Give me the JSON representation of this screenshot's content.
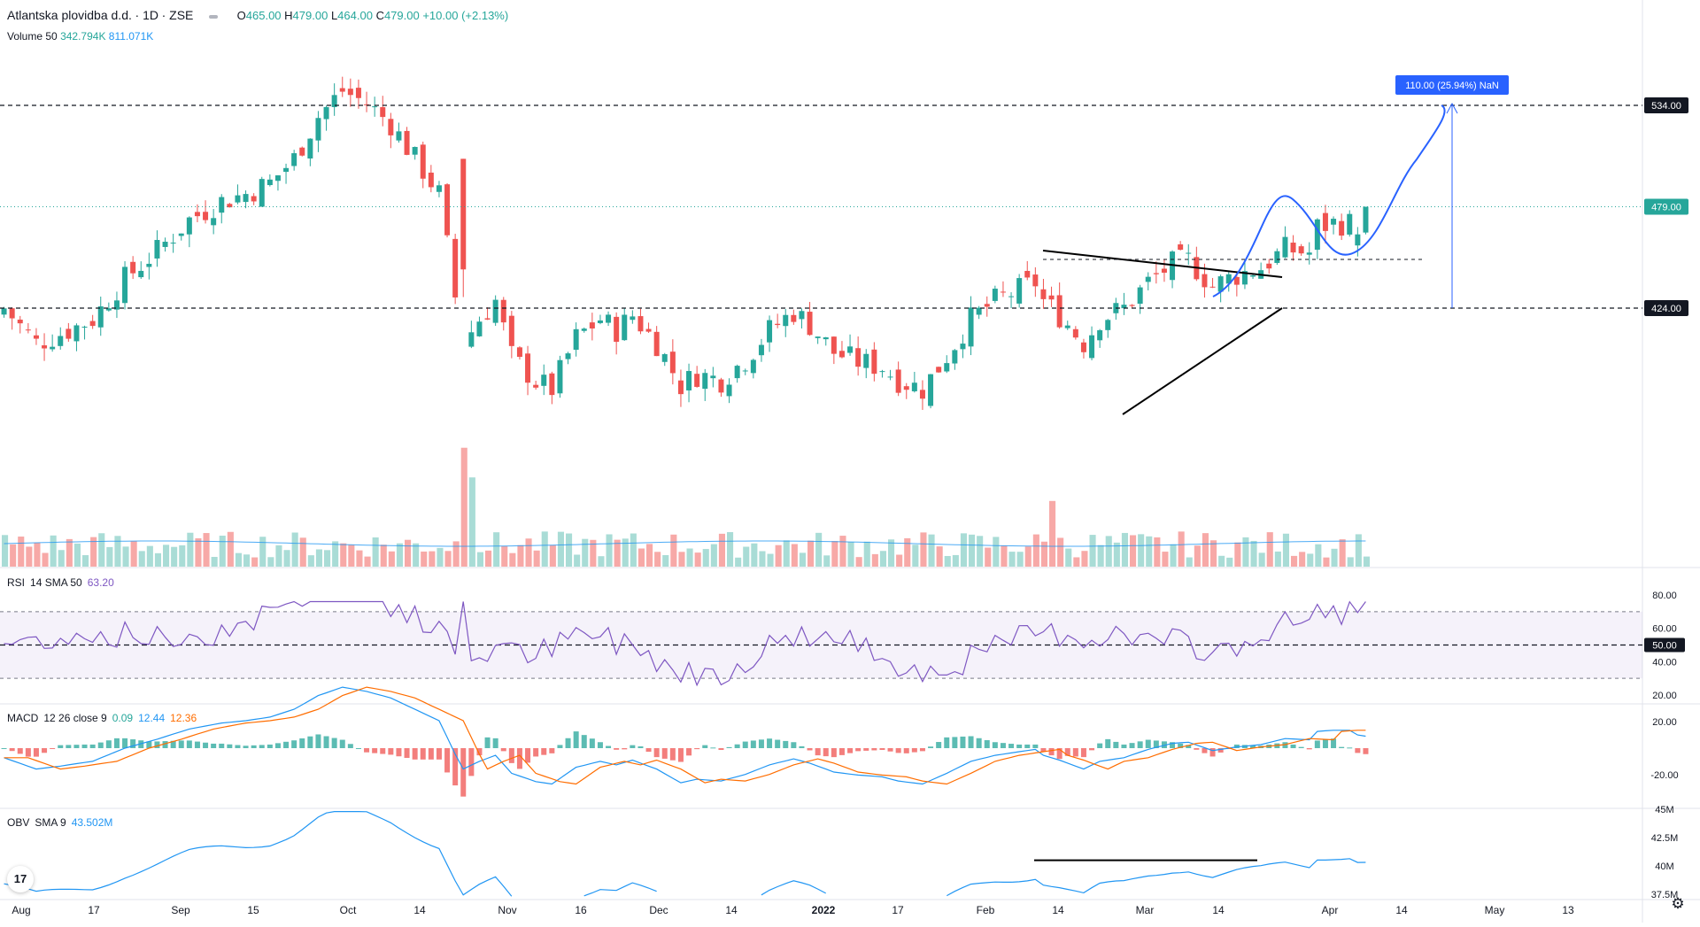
{
  "header": {
    "symbol": "Atlantska plovidba d.d.",
    "interval": "1D",
    "exchange": "ZSE",
    "ohlc": {
      "open_label": "O",
      "open": "465.00",
      "high_label": "H",
      "high": "479.00",
      "low_label": "L",
      "low": "464.00",
      "close_label": "C",
      "close": "479.00",
      "change": "+10.00 (+2.13%)"
    },
    "volume_label": "Volume 50",
    "volume_value": "342.794K",
    "volume_ma_value": "811.071K"
  },
  "indicators": {
    "rsi": {
      "label": "RSI",
      "params": "14 SMA 50",
      "value": "63.20"
    },
    "macd": {
      "label": "MACD",
      "params": "12 26 close 9",
      "hist": "0.09",
      "macd": "12.44",
      "signal": "12.36"
    },
    "obv": {
      "label": "OBV",
      "params": "SMA 9",
      "value": "43.502M"
    }
  },
  "price_axis": {
    "labels": [
      {
        "text": "534.00",
        "value": 534,
        "highlight": "dark"
      },
      {
        "text": "479.00",
        "value": 479,
        "highlight": "green"
      },
      {
        "text": "424.00",
        "value": 424,
        "highlight": "dark"
      }
    ]
  },
  "rsi_axis": [
    "80.00",
    "60.00",
    "50.00",
    "40.00",
    "20.00"
  ],
  "macd_axis": [
    "20.00",
    "-20.00"
  ],
  "obv_axis": [
    "45M",
    "42.5M",
    "40M",
    "37.5M"
  ],
  "time_axis": [
    "Aug",
    "17",
    "Sep",
    "15",
    "Oct",
    "14",
    "Nov",
    "16",
    "Dec",
    "14",
    "2022",
    "17",
    "Feb",
    "14",
    "Mar",
    "14",
    "Apr",
    "14",
    "May",
    "13"
  ],
  "measure_label": "110.00 (25.94%) NaN",
  "logo_text": "17",
  "colors": {
    "up": "#26a69a",
    "down": "#ef5350",
    "line_blue": "#2962ff",
    "rsi_line": "#7e57c2",
    "macd_line": "#2196f3",
    "signal_line": "#ff6d00",
    "obv_line": "#2196f3"
  },
  "chart_data": {
    "type": "candlestick",
    "series": [
      {
        "name": "Atlantska plovidba d.d.",
        "ohlc": "last bar O 465.00 H 479.00 L 464.00 C 479.00"
      }
    ],
    "price_levels": [
      534,
      479,
      424
    ],
    "measure": {
      "from": 424,
      "to": 534,
      "change": 110,
      "percent": 25.94
    },
    "last_values": {
      "price": 479,
      "volume": "342.794K",
      "volume_ma": "811.071K",
      "rsi": 63.2,
      "macd": 12.44,
      "signal": 12.36,
      "histogram": 0.09,
      "obv": "43.502M"
    },
    "rsi_levels": [
      70,
      50,
      30
    ]
  }
}
